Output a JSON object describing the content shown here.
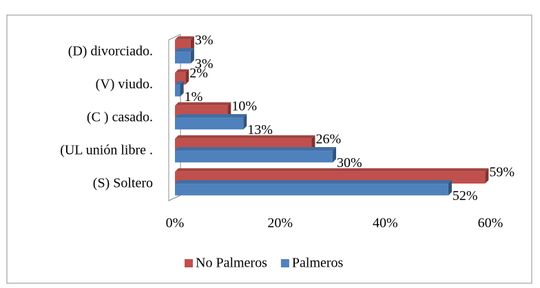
{
  "chart_data": {
    "type": "bar",
    "orientation": "horizontal",
    "categories": [
      "(D) divorciado.",
      "(V)  viudo.",
      "(C ) casado.",
      "(UL unión libre .",
      "(S)  Soltero"
    ],
    "series": [
      {
        "name": "No Palmeros",
        "color": "#c0504d",
        "values": [
          3,
          2,
          10,
          26,
          59
        ],
        "value_labels": [
          "3%",
          "2%",
          "10%",
          "26%",
          "59%"
        ]
      },
      {
        "name": "Palmeros",
        "color": "#4f81bd",
        "values": [
          3,
          1,
          13,
          30,
          52
        ],
        "value_labels": [
          "3%",
          "1%",
          "13%",
          "30%",
          "52%"
        ]
      }
    ],
    "xlim": [
      0,
      60
    ],
    "xticks": [
      {
        "value": 0,
        "label": "0%"
      },
      {
        "value": 20,
        "label": "20%"
      },
      {
        "value": 40,
        "label": "40%"
      },
      {
        "value": 60,
        "label": "60%"
      }
    ],
    "legend": "bottom"
  }
}
